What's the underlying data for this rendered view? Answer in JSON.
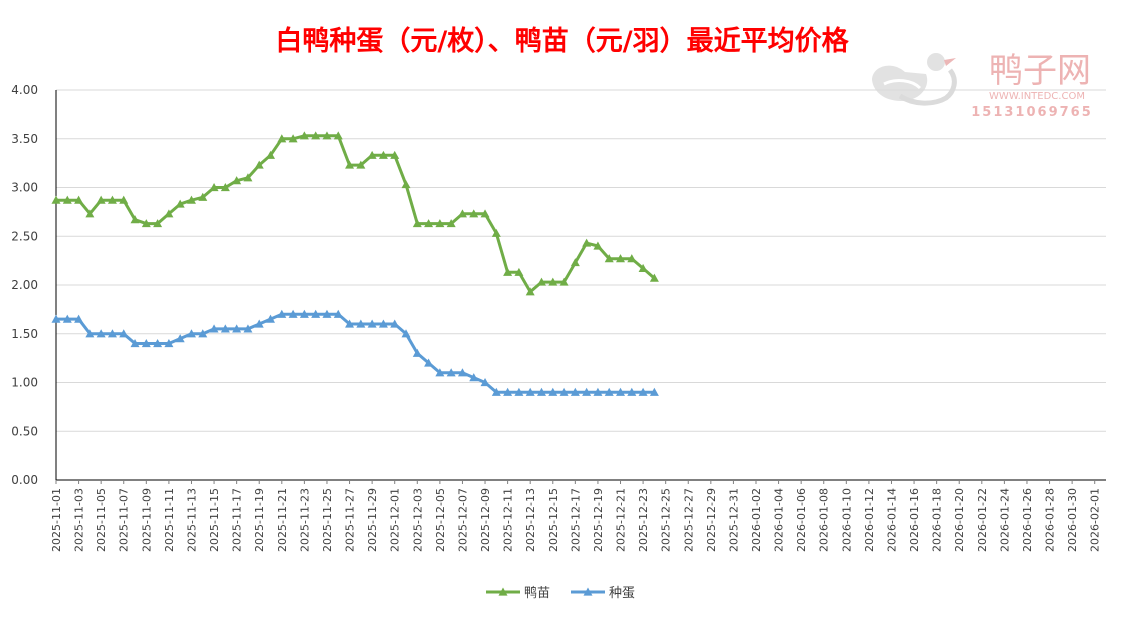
{
  "chart_data": {
    "type": "line",
    "title": "白鸭种蛋（元/枚）、鸭苗（元/羽）最近平均价格",
    "xlabel": "",
    "ylabel": "",
    "ylim": [
      0,
      4
    ],
    "yticks": [
      "0.00",
      "0.50",
      "1.00",
      "1.50",
      "2.00",
      "2.50",
      "3.00",
      "3.50",
      "4.00"
    ],
    "x_start": "2025-11-01",
    "x_end": "2026-02-02",
    "x_tick_labels": [
      "2025-11-01",
      "2025-11-03",
      "2025-11-05",
      "2025-11-07",
      "2025-11-09",
      "2025-11-11",
      "2025-11-13",
      "2025-11-15",
      "2025-11-17",
      "2025-11-19",
      "2025-11-21",
      "2025-11-23",
      "2025-11-25",
      "2025-11-27",
      "2025-11-29",
      "2025-12-01",
      "2025-12-03",
      "2025-12-05",
      "2025-12-07",
      "2025-12-09",
      "2025-12-11",
      "2025-12-13",
      "2025-12-15",
      "2025-12-17",
      "2025-12-19",
      "2025-12-21",
      "2025-12-23",
      "2025-12-25",
      "2025-12-27",
      "2025-12-29",
      "2025-12-31",
      "2026-01-02",
      "2026-01-04",
      "2026-01-06",
      "2026-01-08",
      "2026-01-10",
      "2026-01-12",
      "2026-01-14",
      "2026-01-16",
      "2026-01-18",
      "2026-01-20",
      "2026-01-22",
      "2026-01-24",
      "2026-01-26",
      "2026-01-28",
      "2026-01-30",
      "2026-02-01"
    ],
    "x": [
      "2025-11-01",
      "2025-11-02",
      "2025-11-03",
      "2025-11-04",
      "2025-11-05",
      "2025-11-06",
      "2025-11-07",
      "2025-11-08",
      "2025-11-09",
      "2025-11-10",
      "2025-11-11",
      "2025-11-12",
      "2025-11-13",
      "2025-11-14",
      "2025-11-15",
      "2025-11-16",
      "2025-11-17",
      "2025-11-18",
      "2025-11-19",
      "2025-11-20",
      "2025-11-21",
      "2025-11-22",
      "2025-11-23",
      "2025-11-24",
      "2025-11-25",
      "2025-11-26",
      "2025-11-27",
      "2025-11-28",
      "2025-11-29",
      "2025-11-30",
      "2025-12-01",
      "2025-12-02",
      "2025-12-03",
      "2025-12-04",
      "2025-12-05",
      "2025-12-06",
      "2025-12-07",
      "2025-12-08",
      "2025-12-09",
      "2025-12-10",
      "2025-12-11",
      "2025-12-12",
      "2025-12-13",
      "2025-12-14",
      "2025-12-15",
      "2025-12-16",
      "2025-12-17",
      "2025-12-18",
      "2025-12-19",
      "2025-12-20",
      "2025-12-21",
      "2025-12-22",
      "2025-12-23",
      "2025-12-24"
    ],
    "series": [
      {
        "name": "鸭苗",
        "color": "#70AD47",
        "values": [
          2.87,
          2.87,
          2.87,
          2.73,
          2.87,
          2.87,
          2.87,
          2.67,
          2.63,
          2.63,
          2.73,
          2.83,
          2.87,
          2.9,
          3.0,
          3.0,
          3.07,
          3.1,
          3.23,
          3.33,
          3.5,
          3.5,
          3.53,
          3.53,
          3.53,
          3.53,
          3.23,
          3.23,
          3.33,
          3.33,
          3.33,
          3.03,
          2.63,
          2.63,
          2.63,
          2.63,
          2.73,
          2.73,
          2.73,
          2.53,
          2.13,
          2.13,
          1.93,
          2.03,
          2.03,
          2.03,
          2.23,
          2.43,
          2.4,
          2.27,
          2.27,
          2.27,
          2.17,
          2.07
        ]
      },
      {
        "name": "种蛋",
        "color": "#5B9BD5",
        "values": [
          1.65,
          1.65,
          1.65,
          1.5,
          1.5,
          1.5,
          1.5,
          1.4,
          1.4,
          1.4,
          1.4,
          1.45,
          1.5,
          1.5,
          1.55,
          1.55,
          1.55,
          1.55,
          1.6,
          1.65,
          1.7,
          1.7,
          1.7,
          1.7,
          1.7,
          1.7,
          1.6,
          1.6,
          1.6,
          1.6,
          1.6,
          1.5,
          1.3,
          1.2,
          1.1,
          1.1,
          1.1,
          1.05,
          1.0,
          0.9,
          0.9,
          0.9,
          0.9,
          0.9,
          0.9,
          0.9,
          0.9,
          0.9,
          0.9,
          0.9,
          0.9,
          0.9,
          0.9,
          0.9
        ]
      }
    ],
    "legend": [
      "鸭苗",
      "种蛋"
    ],
    "legend_position": "bottom",
    "grid": true
  },
  "watermark": {
    "brand": "鸭子网",
    "site": "WWW.INTEDC.COM",
    "phone": "15131069765",
    "color": "#E89A9A"
  }
}
